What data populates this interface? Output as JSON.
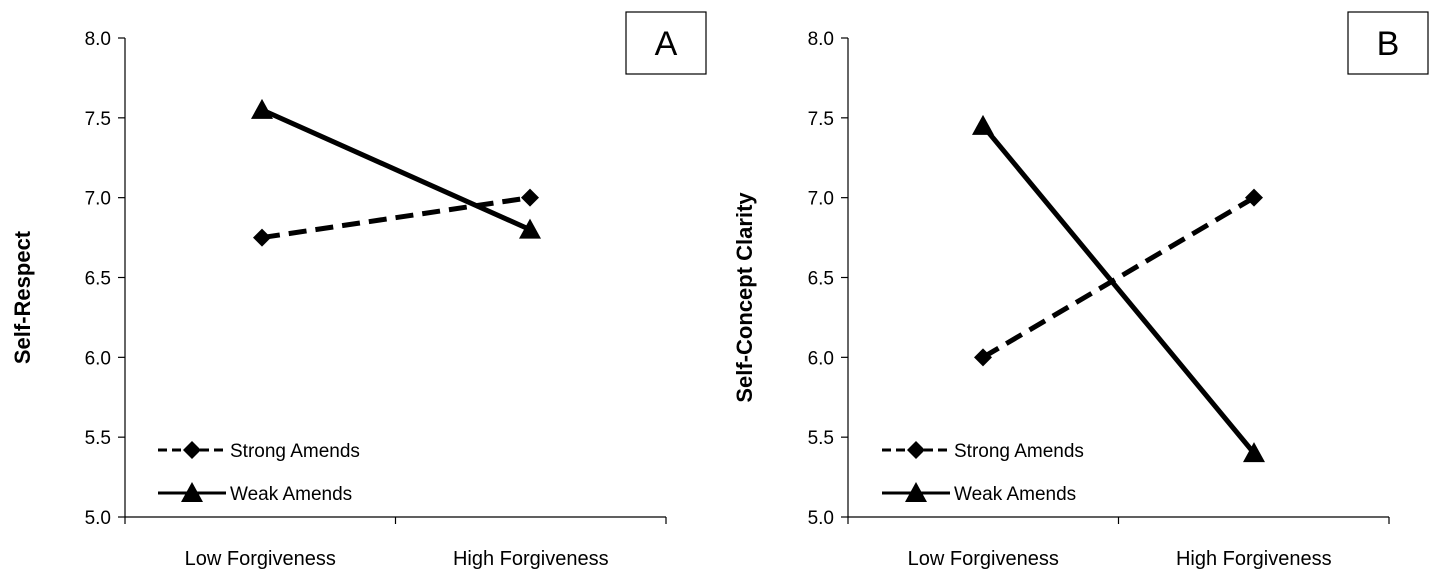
{
  "chart_data": [
    {
      "type": "line",
      "panel_label": "A",
      "title": "",
      "xlabel": "",
      "ylabel": "Self-Respect",
      "categories": [
        "Low Forgiveness",
        "High Forgiveness"
      ],
      "ylim": [
        5.0,
        8.0
      ],
      "yticks": [
        "5.0",
        "5.5",
        "6.0",
        "6.5",
        "7.0",
        "7.5",
        "8.0"
      ],
      "grid": false,
      "legend_position": "bottom-left",
      "series": [
        {
          "name": "Strong Amends",
          "values": [
            6.75,
            7.0
          ],
          "line_style": "dashed",
          "marker": "diamond",
          "color": "#000000"
        },
        {
          "name": "Weak Amends",
          "values": [
            7.55,
            6.8
          ],
          "line_style": "solid",
          "marker": "triangle",
          "color": "#000000"
        }
      ]
    },
    {
      "type": "line",
      "panel_label": "B",
      "title": "",
      "xlabel": "",
      "ylabel": "Self-Concept Clarity",
      "categories": [
        "Low Forgiveness",
        "High Forgiveness"
      ],
      "ylim": [
        5.0,
        8.0
      ],
      "yticks": [
        "5.0",
        "5.5",
        "6.0",
        "6.5",
        "7.0",
        "7.5",
        "8.0"
      ],
      "grid": false,
      "legend_position": "bottom-left",
      "series": [
        {
          "name": "Strong Amends",
          "values": [
            6.0,
            7.0
          ],
          "line_style": "dashed",
          "marker": "diamond",
          "color": "#000000"
        },
        {
          "name": "Weak Amends",
          "values": [
            7.45,
            5.4
          ],
          "line_style": "solid",
          "marker": "triangle",
          "color": "#000000"
        }
      ]
    }
  ]
}
